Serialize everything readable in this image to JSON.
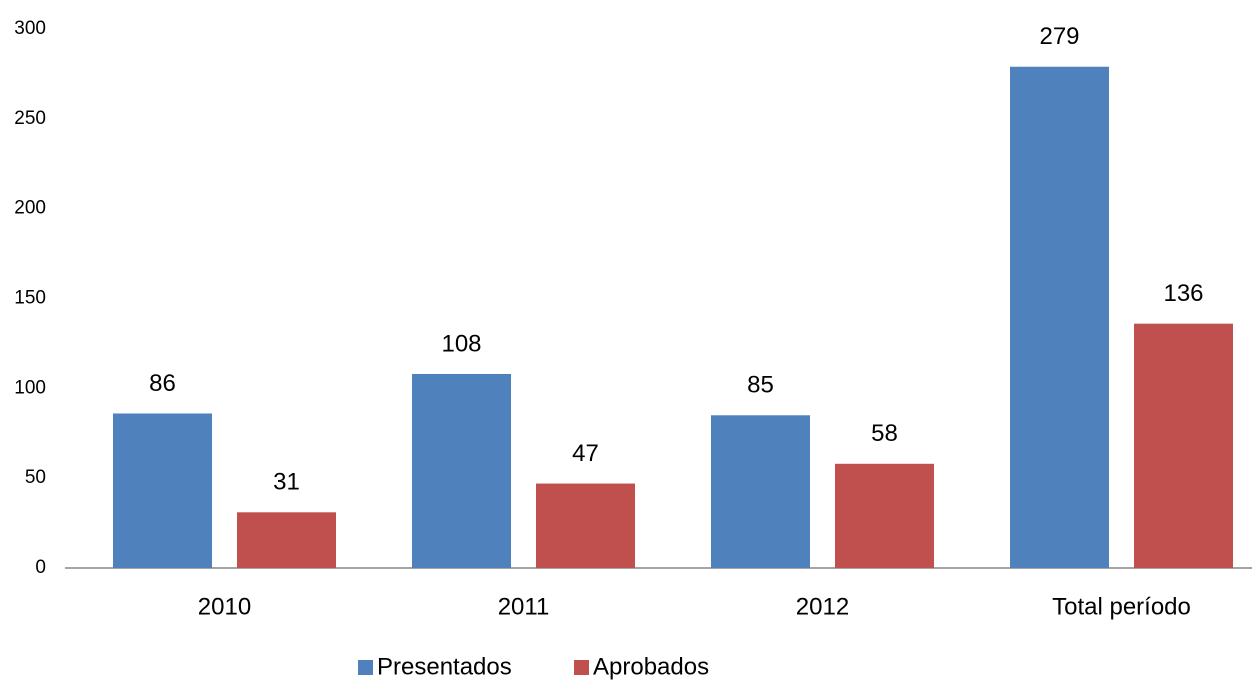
{
  "chart_data": {
    "type": "bar",
    "categories": [
      "2010",
      "2011",
      "2012",
      "Total período"
    ],
    "series": [
      {
        "name": "Presentados",
        "color": "#4f81bd",
        "values": [
          86,
          108,
          85,
          279
        ]
      },
      {
        "name": "Aprobados",
        "color": "#c0504d",
        "values": [
          31,
          47,
          58,
          136
        ]
      }
    ],
    "ylim": [
      0,
      300
    ],
    "yticks": [
      0,
      50,
      100,
      150,
      200,
      250,
      300
    ],
    "grid": false,
    "legend": "bottom"
  }
}
